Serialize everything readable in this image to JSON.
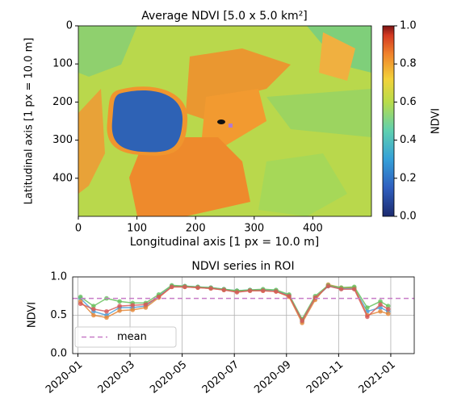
{
  "chart_data": [
    {
      "type": "image",
      "title": "Average NDVI [5.0 x 5.0 km²]",
      "xlabel": "Longitudinal axis [1 px = 10.0 m]",
      "ylabel": "Latitudinal axis [1 px = 10.0 m]",
      "xlim": [
        0,
        500
      ],
      "ylim": [
        500,
        0
      ],
      "xticks": [
        0,
        100,
        200,
        300,
        400
      ],
      "yticks": [
        0,
        100,
        200,
        300,
        400
      ],
      "colorbar": {
        "label": "NDVI",
        "lim": [
          0,
          1
        ],
        "ticks": [
          {
            "value": 0,
            "label": "0.0"
          },
          {
            "value": 0.2,
            "label": "0.2"
          },
          {
            "value": 0.4,
            "label": "0.4"
          },
          {
            "value": 0.6,
            "label": "0.6"
          },
          {
            "value": 0.8,
            "label": "0.8"
          },
          {
            "value": 1,
            "label": "1.0"
          }
        ]
      }
    },
    {
      "type": "line",
      "title": "NDVI series in ROI",
      "ylabel": "NDVI",
      "x": [
        0.1,
        0.6,
        1.1,
        1.6,
        2.1,
        2.6,
        3.1,
        3.6,
        4.1,
        4.6,
        5.1,
        5.6,
        6.1,
        6.6,
        7.1,
        7.6,
        8.1,
        8.6,
        9.1,
        9.6,
        10.1,
        10.6,
        11.1,
        11.6,
        11.9
      ],
      "xlim": [
        -0.2,
        12.9
      ],
      "xticks": [
        {
          "value": 0,
          "label": "2020-01"
        },
        {
          "value": 2,
          "label": "2020-03"
        },
        {
          "value": 4,
          "label": "2020-05"
        },
        {
          "value": 6,
          "label": "2020-07"
        },
        {
          "value": 8,
          "label": "2020-09"
        },
        {
          "value": 10,
          "label": "2020-11"
        },
        {
          "value": 12,
          "label": "2021-01"
        }
      ],
      "ylim": [
        0,
        1
      ],
      "yticks": [
        {
          "value": 0,
          "label": "0.0"
        },
        {
          "value": 0.5,
          "label": "0.5"
        },
        {
          "value": 1,
          "label": "1.0"
        }
      ],
      "grid": true,
      "legend": "lower left",
      "mean": {
        "name": "mean",
        "value": 0.72,
        "color": "#c77cc7"
      },
      "series": [
        {
          "color": "#4c9fd9",
          "values": [
            0.72,
            0.55,
            0.5,
            0.6,
            0.6,
            0.62,
            0.75,
            0.88,
            0.88,
            0.87,
            0.86,
            0.84,
            0.82,
            0.83,
            0.83,
            0.82,
            0.76,
            0.42,
            0.72,
            0.88,
            0.85,
            0.85,
            0.55,
            0.6,
            0.55
          ]
        },
        {
          "color": "#e3873a",
          "values": [
            0.68,
            0.5,
            0.47,
            0.56,
            0.57,
            0.6,
            0.73,
            0.87,
            0.87,
            0.86,
            0.85,
            0.83,
            0.81,
            0.82,
            0.82,
            0.81,
            0.74,
            0.4,
            0.7,
            0.9,
            0.86,
            0.86,
            0.5,
            0.55,
            0.52
          ]
        },
        {
          "color": "#67c15e",
          "values": [
            0.74,
            0.62,
            0.72,
            0.68,
            0.66,
            0.66,
            0.77,
            0.89,
            0.88,
            0.87,
            0.86,
            0.84,
            0.82,
            0.83,
            0.84,
            0.83,
            0.77,
            0.45,
            0.75,
            0.89,
            0.86,
            0.87,
            0.6,
            0.68,
            0.62
          ]
        },
        {
          "color": "#d65a5a",
          "values": [
            0.65,
            0.58,
            0.55,
            0.62,
            0.63,
            0.64,
            0.74,
            0.87,
            0.87,
            0.86,
            0.85,
            0.83,
            0.8,
            0.82,
            0.82,
            0.81,
            0.75,
            0.43,
            0.73,
            0.88,
            0.84,
            0.84,
            0.48,
            0.64,
            0.58
          ]
        }
      ]
    }
  ]
}
